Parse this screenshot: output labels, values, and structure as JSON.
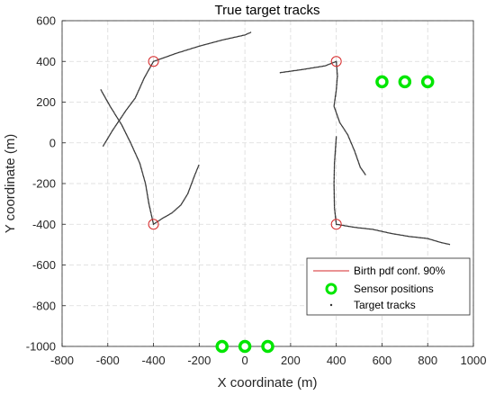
{
  "chart_data": {
    "type": "scatter",
    "title": "True target tracks",
    "xlabel": "X coordinate (m)",
    "ylabel": "Y coordinate (m)",
    "xlim": [
      -800,
      1000
    ],
    "ylim": [
      -1000,
      600
    ],
    "xticks": [
      -800,
      -600,
      -400,
      -200,
      0,
      200,
      400,
      600,
      800,
      1000
    ],
    "yticks": [
      -1000,
      -800,
      -600,
      -400,
      -200,
      0,
      200,
      400,
      600
    ],
    "xtick_labels": [
      "-800",
      "-600",
      "-400",
      "-200",
      "0",
      "200",
      "400",
      "600",
      "800",
      "1000"
    ],
    "ytick_labels": [
      "-1000",
      "-800",
      "-600",
      "-400",
      "-200",
      "0",
      "200",
      "400",
      "600"
    ],
    "grid": true,
    "legend_position": "bottom-right",
    "legend": [
      {
        "label": "Birth pdf conf. 90%",
        "kind": "line",
        "color": "#d62728"
      },
      {
        "label": "Sensor positions",
        "kind": "ring",
        "color": "#00e600"
      },
      {
        "label": "Target tracks",
        "kind": "dot",
        "color": "#333333"
      }
    ],
    "birth_positions": [
      [
        -400,
        400
      ],
      [
        -400,
        -400
      ],
      [
        400,
        400
      ],
      [
        400,
        -400
      ]
    ],
    "sensor_positions": [
      [
        600,
        300
      ],
      [
        700,
        300
      ],
      [
        800,
        300
      ],
      [
        -100,
        -1000
      ],
      [
        0,
        -1000
      ],
      [
        100,
        -1000
      ]
    ],
    "tracks": [
      {
        "points": [
          [
            -400,
            400
          ],
          [
            -300,
            440
          ],
          [
            -200,
            475
          ],
          [
            -100,
            505
          ],
          [
            0,
            530
          ],
          [
            30,
            545
          ]
        ]
      },
      {
        "points": [
          [
            -620,
            -15
          ],
          [
            -580,
            60
          ],
          [
            -520,
            160
          ],
          [
            -480,
            220
          ],
          [
            -440,
            320
          ],
          [
            -400,
            400
          ]
        ]
      },
      {
        "points": [
          [
            -630,
            260
          ],
          [
            -590,
            180
          ],
          [
            -540,
            90
          ],
          [
            -500,
            0
          ],
          [
            -460,
            -100
          ],
          [
            -435,
            -200
          ],
          [
            -420,
            -300
          ],
          [
            -400,
            -400
          ]
        ]
      },
      {
        "points": [
          [
            -400,
            -400
          ],
          [
            -360,
            -370
          ],
          [
            -320,
            -345
          ],
          [
            -280,
            -305
          ],
          [
            -250,
            -250
          ],
          [
            -220,
            -160
          ],
          [
            -200,
            -105
          ]
        ]
      },
      {
        "points": [
          [
            155,
            345
          ],
          [
            250,
            360
          ],
          [
            350,
            378
          ],
          [
            400,
            400
          ]
        ]
      },
      {
        "points": [
          [
            400,
            400
          ],
          [
            405,
            330
          ],
          [
            400,
            260
          ],
          [
            390,
            180
          ],
          [
            415,
            100
          ],
          [
            450,
            40
          ],
          [
            480,
            -40
          ],
          [
            505,
            -120
          ],
          [
            530,
            -160
          ]
        ]
      },
      {
        "points": [
          [
            400,
            30
          ],
          [
            392,
            -100
          ],
          [
            390,
            -200
          ],
          [
            392,
            -320
          ],
          [
            400,
            -400
          ]
        ]
      },
      {
        "points": [
          [
            400,
            -400
          ],
          [
            480,
            -415
          ],
          [
            560,
            -425
          ],
          [
            640,
            -445
          ],
          [
            720,
            -460
          ],
          [
            800,
            -470
          ],
          [
            860,
            -490
          ],
          [
            900,
            -500
          ]
        ]
      }
    ]
  }
}
